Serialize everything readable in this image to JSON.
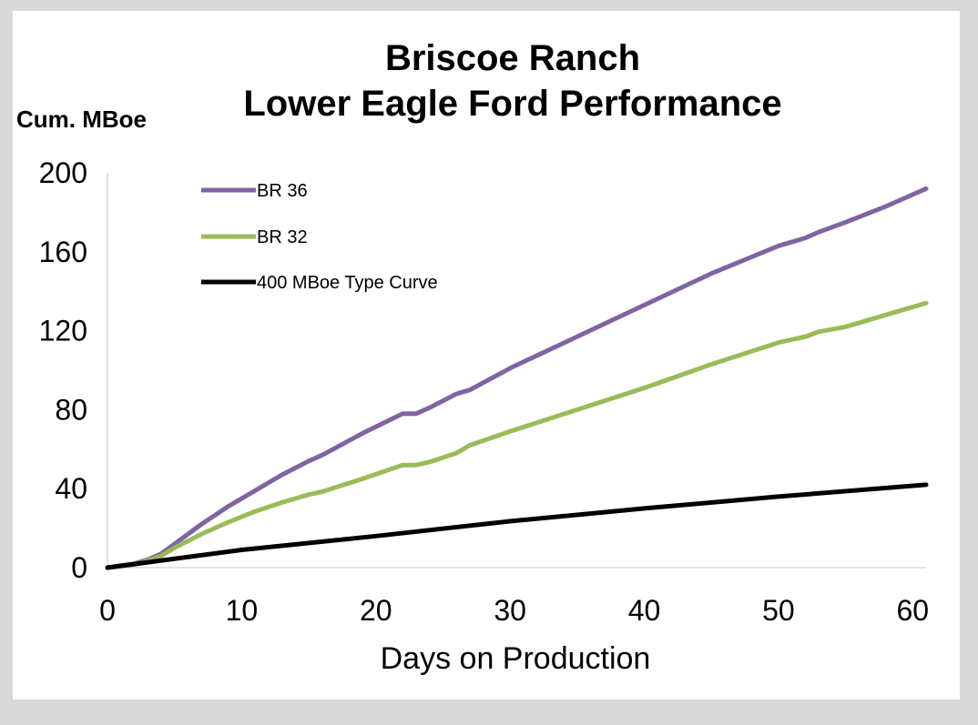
{
  "chart_data": {
    "type": "line",
    "title": "Briscoe Ranch",
    "subtitle": "Lower Eagle Ford Performance",
    "ylabel": "Cum. MBoe",
    "xlabel": "Days on Production",
    "xlim": [
      0,
      61
    ],
    "ylim": [
      0,
      200
    ],
    "xticks": [
      0,
      10,
      20,
      30,
      40,
      50,
      60
    ],
    "yticks": [
      0,
      40,
      80,
      120,
      160,
      200
    ],
    "grid": false,
    "legend_position": "top-left",
    "series": [
      {
        "name": "BR 36",
        "color": "#8064a2",
        "x": [
          0,
          2,
          3,
          4,
          5,
          7,
          9,
          11,
          13,
          15,
          16,
          19,
          22,
          23,
          24,
          26,
          27,
          30,
          35,
          40,
          45,
          50,
          52,
          53,
          55,
          58,
          61
        ],
        "y": [
          0,
          2,
          4,
          7,
          12,
          22,
          31,
          39,
          47,
          54,
          57,
          68,
          78,
          78,
          81,
          88,
          90,
          101,
          117,
          133,
          149,
          163,
          167,
          170,
          175,
          183,
          192
        ]
      },
      {
        "name": "BR 32",
        "color": "#9bbb59",
        "x": [
          0,
          2,
          3,
          4,
          5,
          7,
          9,
          11,
          13,
          15,
          16,
          19,
          22,
          23,
          24,
          26,
          27,
          30,
          35,
          40,
          45,
          50,
          52,
          53,
          55,
          58,
          61
        ],
        "y": [
          0,
          1.5,
          3.5,
          6,
          10,
          17,
          23,
          28.5,
          33,
          37,
          38.5,
          45,
          52,
          52,
          53.5,
          58,
          62,
          69,
          80,
          91,
          103,
          114,
          117,
          119.5,
          122,
          128,
          134
        ]
      },
      {
        "name": "400 MBoe Type Curve",
        "color": "#000000",
        "x": [
          0,
          10,
          20,
          30,
          40,
          50,
          61
        ],
        "y": [
          0,
          9,
          16,
          23.5,
          30,
          36,
          42
        ]
      }
    ]
  }
}
